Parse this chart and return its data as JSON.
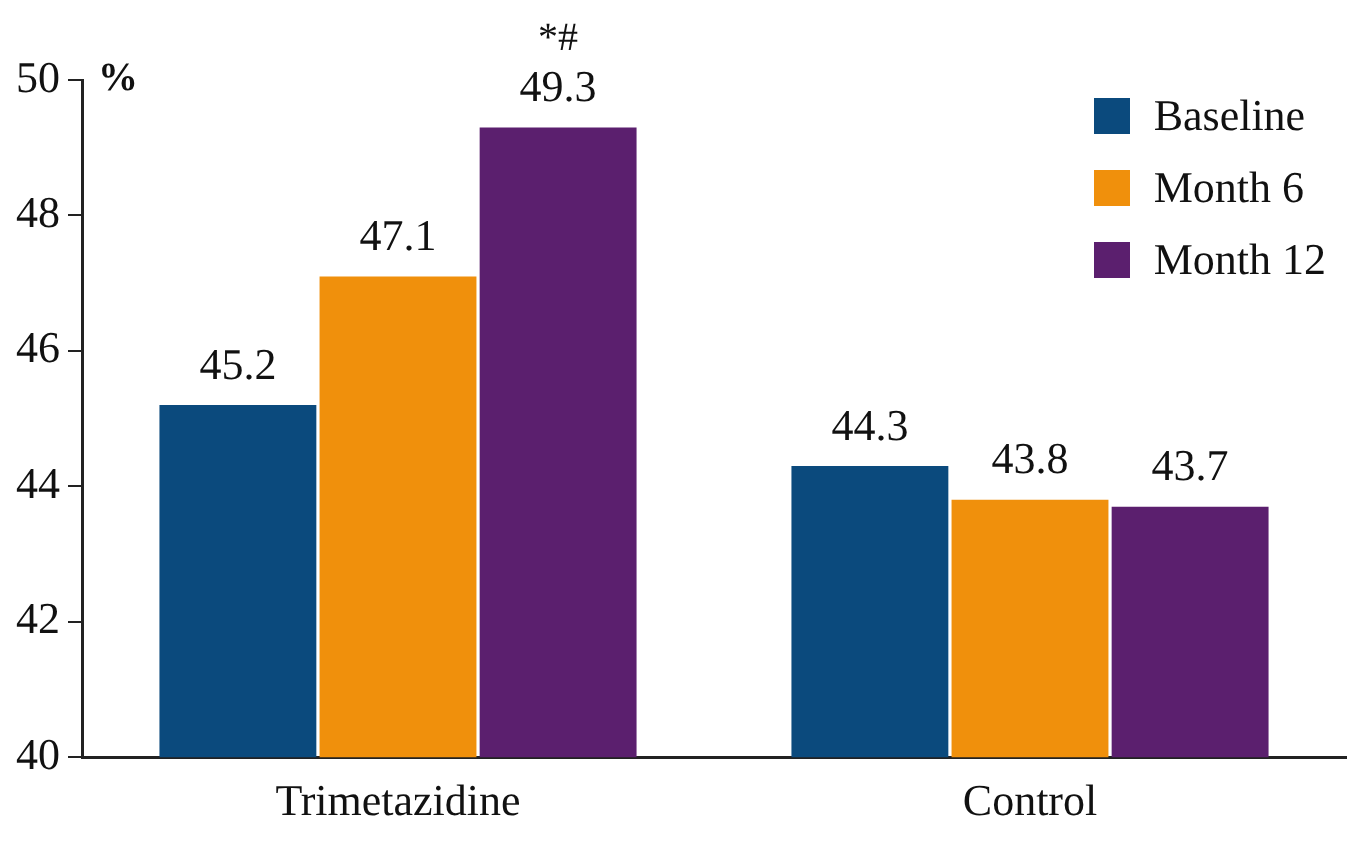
{
  "chart_data": {
    "type": "bar",
    "ylabel": "%",
    "categories": [
      "Trimetazidine",
      "Control"
    ],
    "series": [
      {
        "name": "Baseline",
        "color": "#0b4a7d",
        "values": [
          45.2,
          44.3
        ]
      },
      {
        "name": "Month 6",
        "color": "#f0900c",
        "values": [
          47.1,
          43.8
        ]
      },
      {
        "name": "Month 12",
        "color": "#5b1f6e",
        "values": [
          49.3,
          43.7
        ]
      }
    ],
    "ylim": [
      40,
      50
    ],
    "yticks": [
      40,
      42,
      44,
      46,
      48,
      50
    ],
    "grid": false,
    "legend": "top right",
    "data_labels": true,
    "annotations": [
      "*#"
    ]
  }
}
